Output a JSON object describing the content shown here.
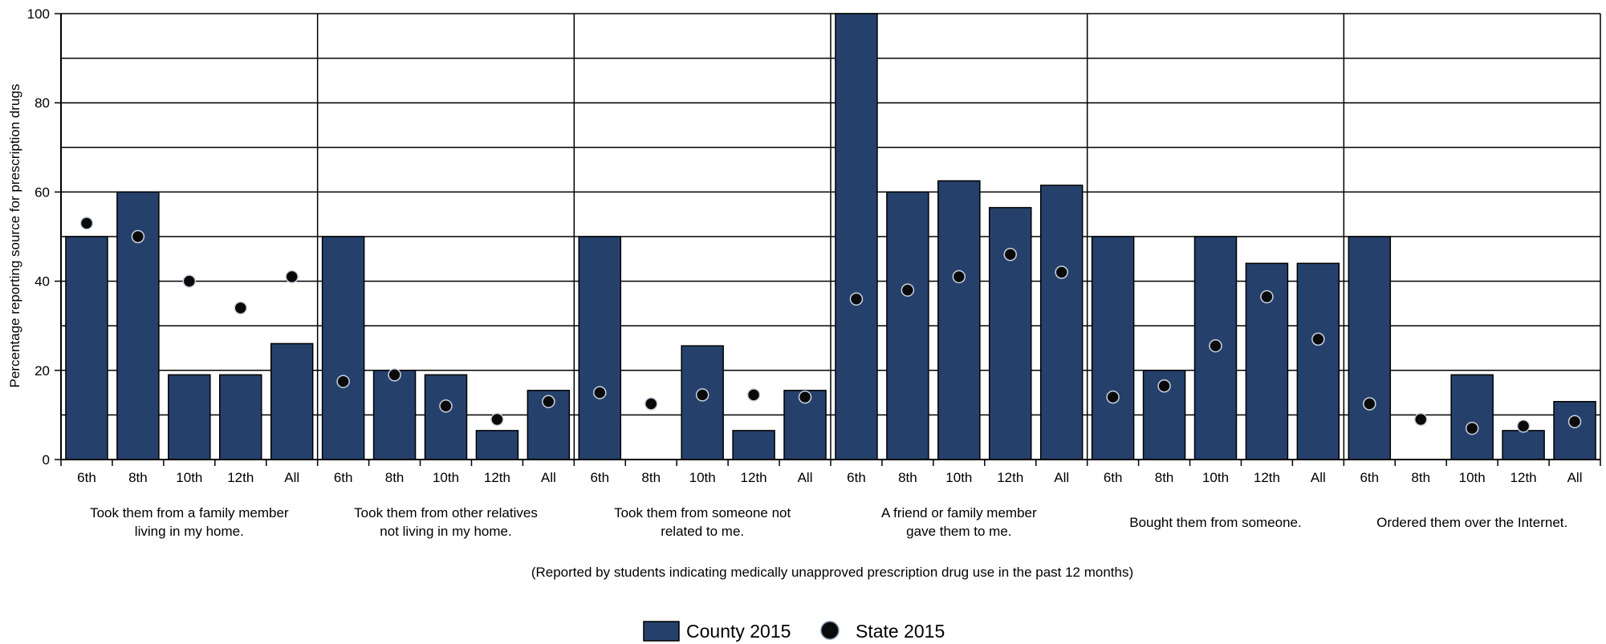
{
  "colors": {
    "county": "#25416b",
    "state": "#0a0a0a",
    "grid": "#000000"
  },
  "chart_data": {
    "type": "bar",
    "ylabel": "Percentage reporting source for prescription drugs",
    "ylim": [
      0,
      100
    ],
    "yticks": [
      0,
      20,
      40,
      60,
      80,
      100
    ],
    "grid": true,
    "legend_position": "bottom-center",
    "grades": [
      "6th",
      "8th",
      "10th",
      "12th",
      "All"
    ],
    "groups": [
      {
        "label_lines": [
          "Took them from a family member",
          "living in my home."
        ],
        "county": [
          50,
          60,
          19,
          19,
          26
        ],
        "state": [
          53,
          50,
          40,
          34,
          41
        ]
      },
      {
        "label_lines": [
          "Took them from other relatives",
          "not living in my home."
        ],
        "county": [
          50,
          20,
          19,
          6.5,
          15.5
        ],
        "state": [
          17.5,
          19,
          12,
          9,
          13
        ]
      },
      {
        "label_lines": [
          "Took them from someone not",
          "related to me."
        ],
        "county": [
          50,
          0,
          25.5,
          6.5,
          15.5
        ],
        "state": [
          15,
          12.5,
          14.5,
          14.5,
          14
        ]
      },
      {
        "label_lines": [
          "A friend or family member",
          "gave them to me."
        ],
        "county": [
          100,
          60,
          62.5,
          56.5,
          61.5
        ],
        "state": [
          36,
          38,
          41,
          46,
          42
        ]
      },
      {
        "label_lines": [
          "Bought them from someone."
        ],
        "county": [
          50,
          20,
          50,
          44,
          44
        ],
        "state": [
          14,
          16.5,
          25.5,
          36.5,
          27
        ]
      },
      {
        "label_lines": [
          "Ordered them over the Internet."
        ],
        "county": [
          50,
          0,
          19,
          6.5,
          13
        ],
        "state": [
          12.5,
          9,
          7,
          7.5,
          8.5
        ]
      }
    ],
    "series": [
      {
        "name": "County 2015",
        "kind": "bar"
      },
      {
        "name": "State 2015",
        "kind": "dot"
      }
    ],
    "footnote": "(Reported by students indicating medically unapproved prescription drug use  in the past 12 months)"
  }
}
